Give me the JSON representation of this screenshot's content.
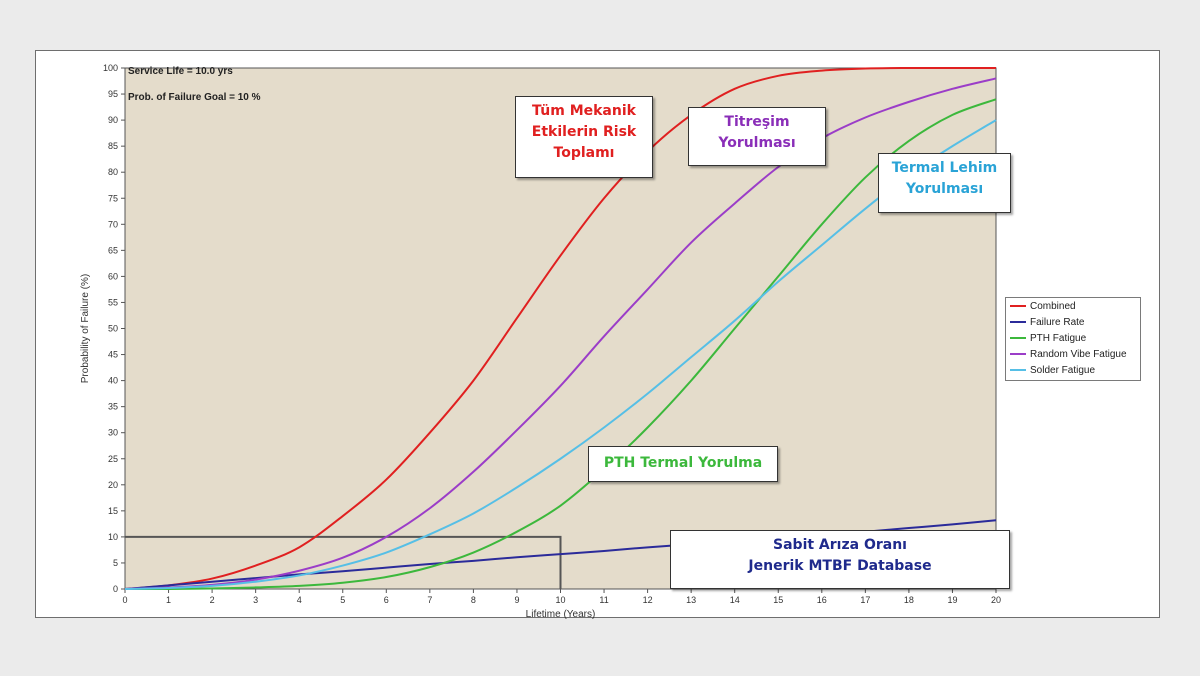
{
  "annotations": {
    "service_life": "Service Life = 10.0 yrs",
    "failure_goal": "Prob. of Failure Goal = 10 %"
  },
  "callouts": {
    "combined": {
      "lines": [
        "Tüm Mekanik",
        "Etkilerin Risk",
        "Toplamı"
      ],
      "color": "#e02020"
    },
    "vibration": {
      "lines": [
        "Titreşim",
        "Yorulması"
      ],
      "color": "#8a2eb8"
    },
    "solder": {
      "lines": [
        "Termal Lehim",
        "Yorulması"
      ],
      "color": "#2aa3d6"
    },
    "pth": {
      "lines": [
        "PTH Termal Yorulma"
      ],
      "color": "#3cb83c"
    },
    "failure_rate": {
      "lines": [
        "Sabit Arıza Oranı",
        "Jenerik MTBF Database"
      ],
      "color": "#1f2a8c"
    }
  },
  "chart_data": {
    "type": "line",
    "xlabel": "Lifetime (Years)",
    "ylabel": "Probability of Failure (%)",
    "xlim": [
      0,
      20
    ],
    "ylim": [
      0,
      100
    ],
    "x_ticks": [
      0,
      1,
      2,
      3,
      4,
      5,
      6,
      7,
      8,
      9,
      10,
      11,
      12,
      13,
      14,
      15,
      16,
      17,
      18,
      19,
      20
    ],
    "y_ticks": [
      0,
      5,
      10,
      15,
      20,
      25,
      30,
      35,
      40,
      45,
      50,
      55,
      60,
      65,
      70,
      75,
      80,
      85,
      90,
      95,
      100
    ],
    "background": "#e4dccb",
    "grid": false,
    "legend_position": "right",
    "goal_box": {
      "x": 10,
      "y": 10
    },
    "x": [
      0,
      1,
      2,
      3,
      4,
      5,
      6,
      7,
      8,
      9,
      10,
      11,
      12,
      13,
      14,
      15,
      16,
      17,
      18,
      19,
      20
    ],
    "series": [
      {
        "name": "Combined",
        "color": "#e02020",
        "values": [
          0,
          0.7,
          2,
          4.5,
          8,
          14,
          21,
          30,
          40,
          52,
          64,
          75,
          84,
          91,
          96,
          98.5,
          99.5,
          99.9,
          100,
          100,
          100
        ]
      },
      {
        "name": "Failure Rate",
        "color": "#2b2b9a",
        "values": [
          0,
          0.7,
          1.4,
          2.1,
          2.8,
          3.4,
          4.1,
          4.8,
          5.4,
          6.1,
          6.7,
          7.3,
          8,
          8.6,
          9.2,
          9.8,
          10.4,
          11,
          11.7,
          12.4,
          13.2
        ]
      },
      {
        "name": "PTH Fatigue",
        "color": "#3cb83c",
        "values": [
          0,
          0,
          0.1,
          0.3,
          0.6,
          1.2,
          2.3,
          4.2,
          7,
          11,
          16,
          23,
          31,
          40,
          50,
          60,
          70,
          79,
          86,
          91,
          94
        ]
      },
      {
        "name": "Random Vibe Fatigue",
        "color": "#9b3dc8",
        "values": [
          0,
          0.3,
          0.8,
          1.8,
          3.5,
          6,
          10,
          15.5,
          22.5,
          30.5,
          39,
          48.5,
          57.5,
          66.5,
          74,
          81,
          86.5,
          90.5,
          93.5,
          96,
          98
        ]
      },
      {
        "name": "Solder Fatigue",
        "color": "#56bfe6",
        "values": [
          0,
          0.2,
          0.6,
          1.4,
          2.6,
          4.5,
          7,
          10.5,
          14.5,
          19.5,
          25,
          31,
          37.5,
          44.5,
          51.5,
          59,
          66,
          73,
          79.5,
          85,
          90
        ]
      }
    ]
  }
}
